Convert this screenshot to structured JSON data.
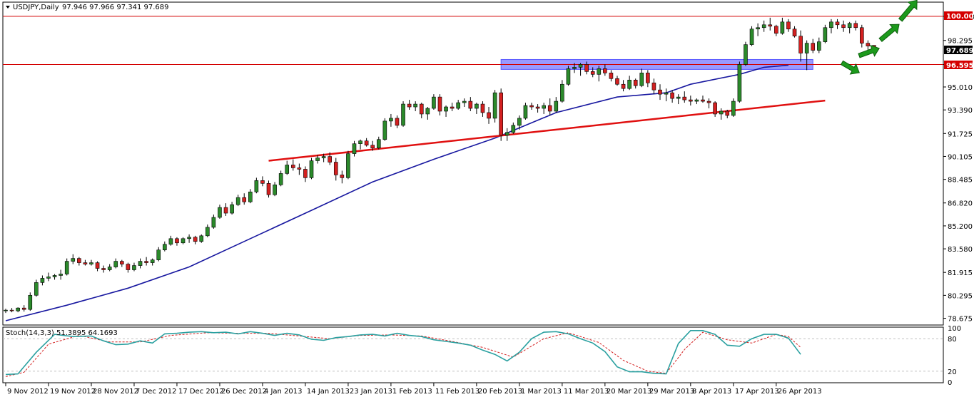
{
  "chart_data": [
    {
      "type": "candlestick",
      "symbol_label": "USDJPY,Daily",
      "ohlc_label": "97.946 97.966 97.341 97.689",
      "ylim": [
        78.2,
        101.0
      ],
      "y_ticks": [
        "100.000",
        "98.295",
        "96.595",
        "95.010",
        "93.390",
        "91.725",
        "90.105",
        "88.485",
        "86.820",
        "85.200",
        "83.580",
        "81.915",
        "80.295",
        "78.675"
      ],
      "y_tick_values": [
        100.0,
        98.295,
        96.595,
        95.01,
        93.39,
        91.725,
        90.105,
        88.485,
        86.82,
        85.2,
        83.58,
        81.915,
        80.295,
        78.675
      ],
      "x_labels": [
        "9 Nov 2012",
        "19 Nov 2012",
        "28 Nov 2012",
        "7 Dec 2012",
        "17 Dec 2012",
        "26 Dec 2012",
        "4 Jan 2013",
        "14 Jan 2013",
        "23 Jan 2013",
        "1 Feb 2013",
        "11 Feb 2013",
        "20 Feb 2013",
        "1 Mar 2013",
        "11 Mar 2013",
        "20 Mar 2013",
        "29 Mar 2013",
        "8 Apr 2013",
        "17 Apr 2013",
        "26 Apr 2013"
      ],
      "x_label_bar_index": [
        0,
        7,
        14,
        21,
        28,
        35,
        42,
        49,
        56,
        63,
        70,
        77,
        84,
        91,
        98,
        105,
        112,
        119,
        126
      ],
      "price_labels": {
        "upper_line": "100.000",
        "support_line": "96.595",
        "last_price": "97.689"
      },
      "horizontal_levels": [
        100.0,
        96.595
      ],
      "resistance_zone": {
        "from_bar": 81,
        "to_bar": 132,
        "low": 96.25,
        "high": 96.95
      },
      "trendline": {
        "from_bar": 43,
        "from_price": 89.8,
        "to_bar": 134,
        "to_price": 94.05
      },
      "bull_up_arrows": 4,
      "moving_average_anchors": [
        [
          0,
          78.5
        ],
        [
          10,
          79.6
        ],
        [
          20,
          80.8
        ],
        [
          30,
          82.3
        ],
        [
          40,
          84.3
        ],
        [
          50,
          86.3
        ],
        [
          60,
          88.3
        ],
        [
          70,
          89.9
        ],
        [
          80,
          91.4
        ],
        [
          90,
          93.2
        ],
        [
          100,
          94.3
        ],
        [
          108,
          94.6
        ],
        [
          112,
          95.2
        ],
        [
          120,
          95.9
        ],
        [
          124,
          96.4
        ],
        [
          128,
          96.55
        ]
      ],
      "candles": [
        [
          79.2,
          79.35,
          79.05,
          79.25
        ],
        [
          79.25,
          79.4,
          79.1,
          79.2
        ],
        [
          79.2,
          79.45,
          79.1,
          79.4
        ],
        [
          79.4,
          79.6,
          79.15,
          79.3
        ],
        [
          79.3,
          80.5,
          79.2,
          80.3
        ],
        [
          80.3,
          81.4,
          80.2,
          81.2
        ],
        [
          81.2,
          81.7,
          81.0,
          81.5
        ],
        [
          81.5,
          81.9,
          81.3,
          81.6
        ],
        [
          81.6,
          81.8,
          81.4,
          81.7
        ],
        [
          81.7,
          82.1,
          81.4,
          81.8
        ],
        [
          81.8,
          82.9,
          81.7,
          82.7
        ],
        [
          82.7,
          83.2,
          82.5,
          82.9
        ],
        [
          82.9,
          83.0,
          82.4,
          82.6
        ],
        [
          82.6,
          82.8,
          82.4,
          82.5
        ],
        [
          82.5,
          82.8,
          82.4,
          82.6
        ],
        [
          82.6,
          82.7,
          82.0,
          82.2
        ],
        [
          82.2,
          82.4,
          81.9,
          82.1
        ],
        [
          82.1,
          82.5,
          82.0,
          82.3
        ],
        [
          82.3,
          82.9,
          82.2,
          82.7
        ],
        [
          82.7,
          82.8,
          82.3,
          82.5
        ],
        [
          82.5,
          82.6,
          81.9,
          82.1
        ],
        [
          82.1,
          82.6,
          82.0,
          82.4
        ],
        [
          82.4,
          82.9,
          82.2,
          82.7
        ],
        [
          82.7,
          83.0,
          82.4,
          82.6
        ],
        [
          82.6,
          82.9,
          82.4,
          82.8
        ],
        [
          82.8,
          83.7,
          82.7,
          83.5
        ],
        [
          83.5,
          84.1,
          83.4,
          83.9
        ],
        [
          83.9,
          84.5,
          83.8,
          84.3
        ],
        [
          84.3,
          84.4,
          83.8,
          84.0
        ],
        [
          84.0,
          84.4,
          83.9,
          84.3
        ],
        [
          84.3,
          84.6,
          84.0,
          84.4
        ],
        [
          84.4,
          84.5,
          83.9,
          84.1
        ],
        [
          84.1,
          84.6,
          84.0,
          84.5
        ],
        [
          84.5,
          85.3,
          84.4,
          85.1
        ],
        [
          85.1,
          86.0,
          85.0,
          85.8
        ],
        [
          85.8,
          86.7,
          85.7,
          86.5
        ],
        [
          86.5,
          86.8,
          85.9,
          86.1
        ],
        [
          86.1,
          86.9,
          86.0,
          86.7
        ],
        [
          86.7,
          87.4,
          86.6,
          87.2
        ],
        [
          87.2,
          87.5,
          86.7,
          86.9
        ],
        [
          86.9,
          87.8,
          86.8,
          87.6
        ],
        [
          87.6,
          88.6,
          87.5,
          88.4
        ],
        [
          88.4,
          88.7,
          88.0,
          88.2
        ],
        [
          88.2,
          88.4,
          87.2,
          87.4
        ],
        [
          87.4,
          88.3,
          87.3,
          88.1
        ],
        [
          88.1,
          89.1,
          88.0,
          88.9
        ],
        [
          88.9,
          89.8,
          88.8,
          89.5
        ],
        [
          89.5,
          89.9,
          89.1,
          89.3
        ],
        [
          89.3,
          89.6,
          88.8,
          89.2
        ],
        [
          89.2,
          89.4,
          88.3,
          88.6
        ],
        [
          88.6,
          90.0,
          88.5,
          89.8
        ],
        [
          89.8,
          90.2,
          89.6,
          90.0
        ],
        [
          90.0,
          90.3,
          89.7,
          90.1
        ],
        [
          90.1,
          90.4,
          89.5,
          89.7
        ],
        [
          89.7,
          90.0,
          88.4,
          88.8
        ],
        [
          88.8,
          89.1,
          88.2,
          88.6
        ],
        [
          88.6,
          90.5,
          88.5,
          90.3
        ],
        [
          90.3,
          91.2,
          90.1,
          91.0
        ],
        [
          91.0,
          91.3,
          90.6,
          91.2
        ],
        [
          91.2,
          91.4,
          90.8,
          90.9
        ],
        [
          90.9,
          91.2,
          90.5,
          90.7
        ],
        [
          90.7,
          91.5,
          90.6,
          91.3
        ],
        [
          91.3,
          92.8,
          91.2,
          92.6
        ],
        [
          92.6,
          93.1,
          92.2,
          92.8
        ],
        [
          92.8,
          93.0,
          92.1,
          92.3
        ],
        [
          92.3,
          94.0,
          92.2,
          93.8
        ],
        [
          93.8,
          94.1,
          93.4,
          93.6
        ],
        [
          93.6,
          94.0,
          93.3,
          93.8
        ],
        [
          93.8,
          93.9,
          92.8,
          93.1
        ],
        [
          93.1,
          93.6,
          92.7,
          93.5
        ],
        [
          93.5,
          94.5,
          93.4,
          94.3
        ],
        [
          94.3,
          94.5,
          93.0,
          93.3
        ],
        [
          93.3,
          93.7,
          92.9,
          93.6
        ],
        [
          93.6,
          93.9,
          93.3,
          93.5
        ],
        [
          93.5,
          94.1,
          93.4,
          93.9
        ],
        [
          93.9,
          94.2,
          93.6,
          94.0
        ],
        [
          94.0,
          94.3,
          93.3,
          93.5
        ],
        [
          93.5,
          93.9,
          93.1,
          93.8
        ],
        [
          93.8,
          94.0,
          92.9,
          93.2
        ],
        [
          93.2,
          93.6,
          92.4,
          92.8
        ],
        [
          92.8,
          94.8,
          92.5,
          94.6
        ],
        [
          94.6,
          94.9,
          91.2,
          91.6
        ],
        [
          91.6,
          92.1,
          91.2,
          91.8
        ],
        [
          91.8,
          92.5,
          91.7,
          92.3
        ],
        [
          92.3,
          93.0,
          92.0,
          92.8
        ],
        [
          92.8,
          93.9,
          92.7,
          93.7
        ],
        [
          93.7,
          93.9,
          93.4,
          93.6
        ],
        [
          93.6,
          93.8,
          93.2,
          93.5
        ],
        [
          93.5,
          93.9,
          93.1,
          93.7
        ],
        [
          93.7,
          94.2,
          93.0,
          93.3
        ],
        [
          93.3,
          94.3,
          93.2,
          94.0
        ],
        [
          94.0,
          95.5,
          93.9,
          95.2
        ],
        [
          95.2,
          96.5,
          95.1,
          96.3
        ],
        [
          96.3,
          96.7,
          96.0,
          96.4
        ],
        [
          96.4,
          96.7,
          95.8,
          96.6
        ],
        [
          96.6,
          96.8,
          95.9,
          96.1
        ],
        [
          96.1,
          96.4,
          95.7,
          95.9
        ],
        [
          95.9,
          96.5,
          95.4,
          96.3
        ],
        [
          96.3,
          96.6,
          95.8,
          96.0
        ],
        [
          96.0,
          96.2,
          95.4,
          95.6
        ],
        [
          95.6,
          95.8,
          95.1,
          95.2
        ],
        [
          95.2,
          95.5,
          94.7,
          94.9
        ],
        [
          94.9,
          95.8,
          94.8,
          95.5
        ],
        [
          95.5,
          95.6,
          94.9,
          95.1
        ],
        [
          95.1,
          96.3,
          95.0,
          96.0
        ],
        [
          96.0,
          96.2,
          95.0,
          95.3
        ],
        [
          95.3,
          95.6,
          94.5,
          94.8
        ],
        [
          94.8,
          95.2,
          94.1,
          94.5
        ],
        [
          94.5,
          94.9,
          94.0,
          94.6
        ],
        [
          94.6,
          94.8,
          93.9,
          94.2
        ],
        [
          94.2,
          94.5,
          93.8,
          94.3
        ],
        [
          94.3,
          94.7,
          93.9,
          94.1
        ],
        [
          94.1,
          94.4,
          93.7,
          94.0
        ],
        [
          94.0,
          94.2,
          93.8,
          94.1
        ],
        [
          94.1,
          94.4,
          93.9,
          94.0
        ],
        [
          94.0,
          94.2,
          93.5,
          93.9
        ],
        [
          93.9,
          94.0,
          92.9,
          93.1
        ],
        [
          93.1,
          93.5,
          92.7,
          93.3
        ],
        [
          93.3,
          93.4,
          92.8,
          93.0
        ],
        [
          93.0,
          94.2,
          92.9,
          94.0
        ],
        [
          94.0,
          96.8,
          93.9,
          96.6
        ],
        [
          96.6,
          98.2,
          96.5,
          98.0
        ],
        [
          98.0,
          99.3,
          97.9,
          99.1
        ],
        [
          99.1,
          99.5,
          98.6,
          99.2
        ],
        [
          99.2,
          99.7,
          98.9,
          99.4
        ],
        [
          99.4,
          99.9,
          99.0,
          99.3
        ],
        [
          99.3,
          99.4,
          98.6,
          98.8
        ],
        [
          98.8,
          99.9,
          98.7,
          99.6
        ],
        [
          99.6,
          99.8,
          98.9,
          99.1
        ],
        [
          99.1,
          99.3,
          98.5,
          98.6
        ],
        [
          98.6,
          99.0,
          96.8,
          97.4
        ],
        [
          97.4,
          98.3,
          96.2,
          98.1
        ],
        [
          98.1,
          98.4,
          97.4,
          97.6
        ],
        [
          97.6,
          98.5,
          97.4,
          98.2
        ],
        [
          98.2,
          99.4,
          98.1,
          99.2
        ],
        [
          99.2,
          99.8,
          98.8,
          99.6
        ],
        [
          99.6,
          99.8,
          99.1,
          99.4
        ],
        [
          99.4,
          99.7,
          98.9,
          99.2
        ],
        [
          99.2,
          99.6,
          98.8,
          99.5
        ],
        [
          99.5,
          99.7,
          99.0,
          99.2
        ],
        [
          99.2,
          99.4,
          97.8,
          98.1
        ],
        [
          98.1,
          98.3,
          97.6,
          97.9
        ],
        [
          97.946,
          97.966,
          97.341,
          97.689
        ]
      ]
    },
    {
      "type": "line",
      "label": "Stoch(14,3,3) 51.3895 64.1693",
      "ylim": [
        0,
        100
      ],
      "y_ticks": [
        "100",
        "80",
        "20",
        "0"
      ],
      "y_tick_values": [
        100,
        80,
        20,
        0
      ],
      "levels": [
        20,
        80
      ],
      "k_anchors": [
        [
          0,
          14
        ],
        [
          2,
          15
        ],
        [
          5,
          55
        ],
        [
          8,
          88
        ],
        [
          11,
          84
        ],
        [
          14,
          85
        ],
        [
          16,
          76
        ],
        [
          18,
          69
        ],
        [
          20,
          70
        ],
        [
          22,
          76
        ],
        [
          24,
          72
        ],
        [
          26,
          89
        ],
        [
          28,
          90
        ],
        [
          30,
          92
        ],
        [
          32,
          93
        ],
        [
          34,
          91
        ],
        [
          36,
          92
        ],
        [
          38,
          89
        ],
        [
          40,
          93
        ],
        [
          42,
          90
        ],
        [
          44,
          86
        ],
        [
          46,
          90
        ],
        [
          48,
          87
        ],
        [
          50,
          79
        ],
        [
          52,
          77
        ],
        [
          54,
          82
        ],
        [
          56,
          84
        ],
        [
          58,
          87
        ],
        [
          60,
          88
        ],
        [
          62,
          85
        ],
        [
          64,
          90
        ],
        [
          66,
          86
        ],
        [
          68,
          84
        ],
        [
          70,
          78
        ],
        [
          72,
          75
        ],
        [
          74,
          72
        ],
        [
          76,
          68
        ],
        [
          78,
          59
        ],
        [
          80,
          51
        ],
        [
          82,
          39
        ],
        [
          84,
          55
        ],
        [
          86,
          80
        ],
        [
          88,
          92
        ],
        [
          90,
          93
        ],
        [
          92,
          89
        ],
        [
          94,
          80
        ],
        [
          96,
          72
        ],
        [
          98,
          56
        ],
        [
          100,
          28
        ],
        [
          102,
          19
        ],
        [
          104,
          19
        ],
        [
          106,
          16
        ],
        [
          108,
          15
        ],
        [
          110,
          71
        ],
        [
          112,
          95
        ],
        [
          114,
          95
        ],
        [
          116,
          88
        ],
        [
          118,
          68
        ],
        [
          120,
          66
        ],
        [
          122,
          80
        ],
        [
          124,
          88
        ],
        [
          126,
          88
        ],
        [
          128,
          81
        ],
        [
          130,
          51
        ]
      ],
      "d_anchors": [
        [
          0,
          10
        ],
        [
          3,
          18
        ],
        [
          7,
          70
        ],
        [
          12,
          86
        ],
        [
          17,
          74
        ],
        [
          22,
          74
        ],
        [
          27,
          86
        ],
        [
          33,
          91
        ],
        [
          38,
          90
        ],
        [
          43,
          90
        ],
        [
          48,
          85
        ],
        [
          53,
          80
        ],
        [
          58,
          86
        ],
        [
          63,
          87
        ],
        [
          68,
          85
        ],
        [
          73,
          75
        ],
        [
          78,
          64
        ],
        [
          83,
          46
        ],
        [
          88,
          80
        ],
        [
          92,
          91
        ],
        [
          97,
          73
        ],
        [
          101,
          40
        ],
        [
          105,
          20
        ],
        [
          108,
          16
        ],
        [
          111,
          60
        ],
        [
          114,
          92
        ],
        [
          118,
          78
        ],
        [
          122,
          72
        ],
        [
          126,
          88
        ],
        [
          128,
          84
        ],
        [
          130,
          64
        ]
      ]
    }
  ]
}
